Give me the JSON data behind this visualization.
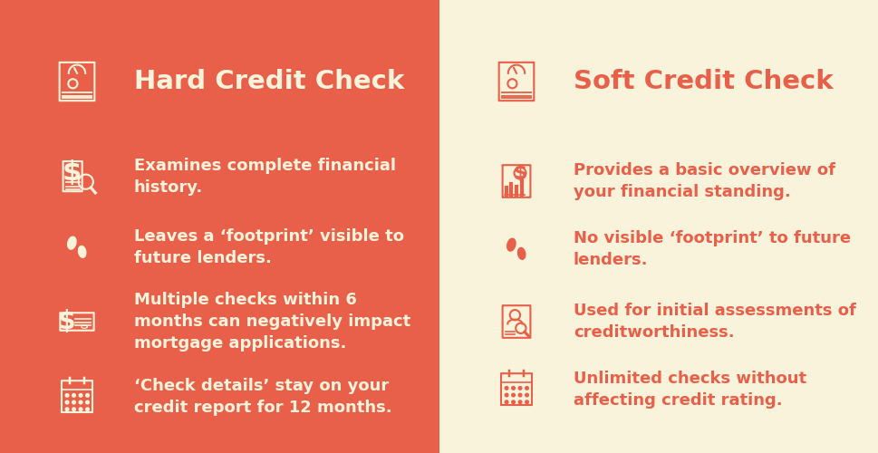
{
  "left_bg": "#E8604A",
  "right_bg": "#FAF3DC",
  "left_text_color": "#FAF3DC",
  "right_text_color": "#E8604A",
  "left_title": "Hard Credit Check",
  "right_title": "Soft Credit Check",
  "left_items": [
    "Examines complete financial\nhistory.",
    "Leaves a ‘footprint’ visible to\nfuture lenders.",
    "Multiple checks within 6\nmonths can negatively impact\nmortgage applications.",
    "‘Check details’ stay on your\ncredit report for 12 months."
  ],
  "right_items": [
    "Provides a basic overview of\nyour financial standing.",
    "No visible ‘footprint’ to future\nlenders.",
    "Used for initial assessments of\ncreditworthiness.",
    "Unlimited checks without\naffecting credit rating."
  ],
  "title_fontsize": 21,
  "item_fontsize": 13,
  "fig_width": 9.7,
  "fig_height": 5.0,
  "dpi": 100
}
